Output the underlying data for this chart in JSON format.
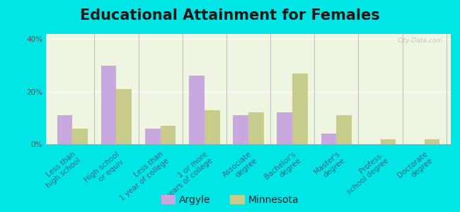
{
  "title": "Educational Attainment for Females",
  "categories": [
    "Less than\nhigh school",
    "High school\nor equiv.",
    "Less than\n1 year of college",
    "1 or more\nyears of college",
    "Associate\ndegree",
    "Bachelor's\ndegree",
    "Master's\ndegree",
    "Profess.\nschool degree",
    "Doctorate\ndegree"
  ],
  "argyle_values": [
    11,
    30,
    6,
    26,
    11,
    12,
    4,
    0,
    0
  ],
  "minnesota_values": [
    6,
    21,
    7,
    13,
    12,
    27,
    11,
    2,
    2
  ],
  "argyle_color": "#c9a8e0",
  "minnesota_color": "#c8cc8a",
  "plot_bg_color": "#eef5e0",
  "outer_bg": "#00e5e5",
  "ylim": [
    0,
    42
  ],
  "yticks": [
    0,
    20,
    40
  ],
  "ytick_labels": [
    "0%",
    "20%",
    "40%"
  ],
  "bar_width": 0.35,
  "title_fontsize": 15,
  "tick_fontsize": 7.5,
  "legend_fontsize": 10,
  "watermark": "City-Data.com"
}
